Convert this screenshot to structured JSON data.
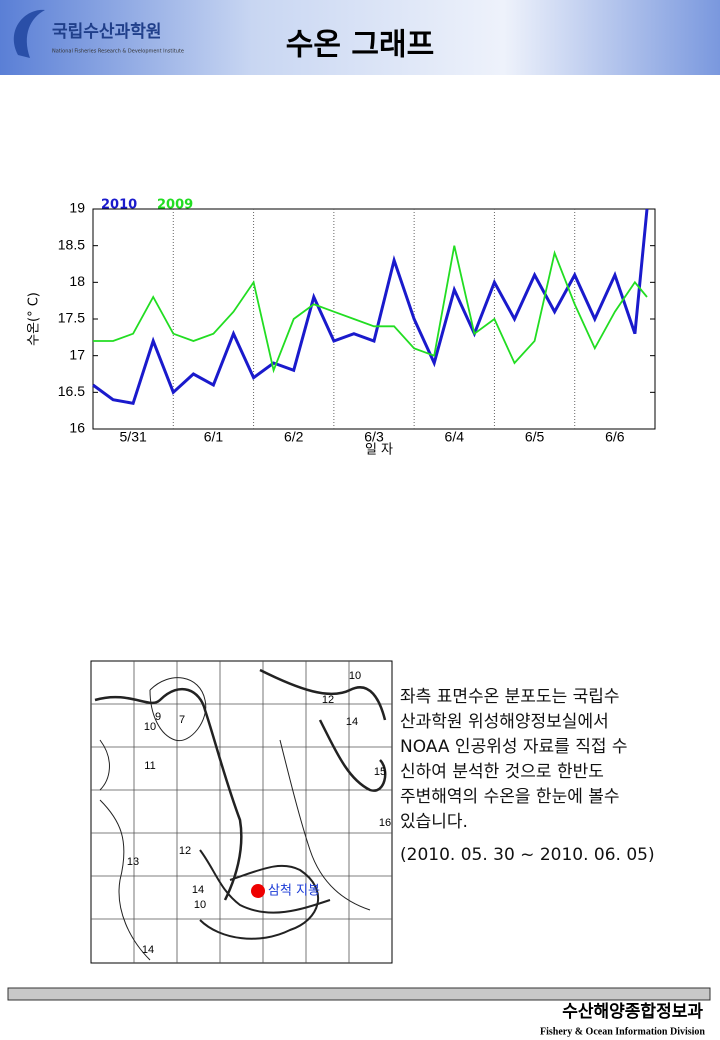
{
  "header": {
    "org_name": "국립수산과학원",
    "org_name_en": "National Fisheries Research & Development Institute",
    "title": "수온 그래프"
  },
  "chart_data": {
    "type": "line",
    "ylabel": "수온(° C)",
    "xlabel": "일 자",
    "xlim": [
      0,
      7
    ],
    "xticks": [
      {
        "value": 0.5,
        "label": "5/31"
      },
      {
        "value": 1.5,
        "label": "6/1"
      },
      {
        "value": 2.5,
        "label": "6/2"
      },
      {
        "value": 3.5,
        "label": "6/3"
      },
      {
        "value": 4.5,
        "label": "6/4"
      },
      {
        "value": 5.5,
        "label": "6/5"
      },
      {
        "value": 6.5,
        "label": "6/6"
      }
    ],
    "ylim": [
      16,
      19
    ],
    "yticks": [
      16,
      16.5,
      17,
      17.5,
      18,
      18.5,
      19
    ],
    "x": [
      0,
      0.25,
      0.5,
      0.75,
      1,
      1.25,
      1.5,
      1.75,
      2,
      2.25,
      2.5,
      2.75,
      3,
      3.25,
      3.5,
      3.75,
      4,
      4.25,
      4.5,
      4.75,
      5,
      5.25,
      5.5,
      5.75,
      6,
      6.25,
      6.5,
      6.75,
      6.9
    ],
    "series": [
      {
        "name": "2010",
        "color": "#1a1acc",
        "values": [
          16.6,
          16.4,
          16.35,
          17.2,
          16.5,
          16.75,
          16.6,
          17.3,
          16.7,
          16.9,
          16.8,
          17.8,
          17.2,
          17.3,
          17.2,
          18.3,
          17.5,
          16.9,
          17.9,
          17.3,
          18.0,
          17.5,
          18.1,
          17.6,
          18.1,
          17.5,
          18.1,
          17.3,
          19.0
        ]
      },
      {
        "name": "2009",
        "color": "#22dd22",
        "values": [
          17.2,
          17.2,
          17.3,
          17.8,
          17.3,
          17.2,
          17.3,
          17.6,
          18.0,
          16.8,
          17.5,
          17.7,
          17.6,
          17.5,
          17.4,
          17.4,
          17.1,
          17.0,
          18.5,
          17.3,
          17.5,
          16.9,
          17.2,
          18.4,
          17.7,
          17.1,
          17.6,
          18.0,
          17.8
        ]
      }
    ]
  },
  "map": {
    "labels": [
      "10",
      "12",
      "14",
      "15",
      "16",
      "9",
      "7",
      "10",
      "11",
      "12",
      "13",
      "14",
      "10",
      "14"
    ],
    "site": "삼척 지봉"
  },
  "description": {
    "lines": [
      "좌측 표면수온 분포도는 국립수",
      "산과학원 위성해양정보실에서",
      "NOAA 인공위성 자료를 직접 수",
      "신하여 분석한 것으로  한반도",
      "주변해역의 수온을 한눈에 볼수",
      "있습니다."
    ],
    "period": "(2010. 05. 30 ~ 2010. 06. 05)"
  },
  "footer": {
    "division": "수산해양종합정보과",
    "division_en": "Fishery & Ocean Information Division"
  }
}
